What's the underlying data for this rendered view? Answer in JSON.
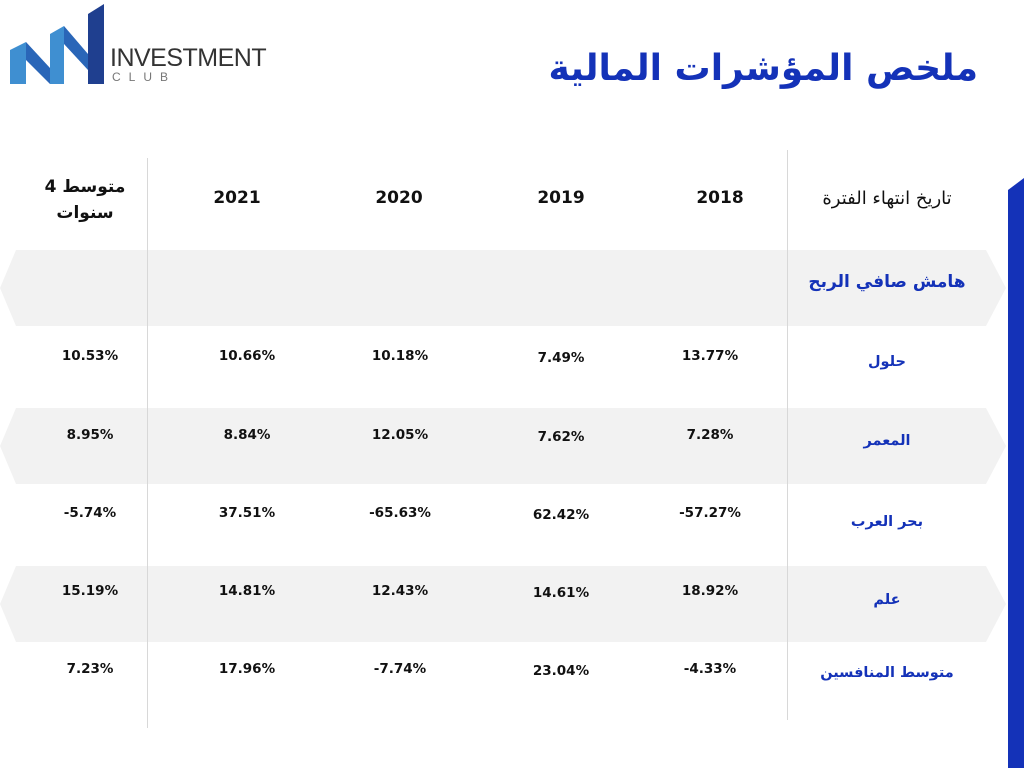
{
  "logo": {
    "word": "INVESTMENT",
    "sub": "CLUB"
  },
  "title": "ملخص المؤشرات المالية",
  "colors": {
    "accent": "#1432b8",
    "band": "#f2f2f2",
    "logo_blue_dark": "#1f3f8f",
    "logo_blue_light": "#3f8fd1"
  },
  "table": {
    "period_header": "تاريخ انتهاء الفترة",
    "years": [
      "2018",
      "2019",
      "2020",
      "2021"
    ],
    "avg_header_line1": "متوسط 4",
    "avg_header_line2": "سنوات",
    "section": "هامش صافي الربح",
    "rows": [
      {
        "label": "حلول",
        "values": [
          "13.77%",
          "7.49%",
          "10.18%",
          "10.66%"
        ],
        "avg": "10.53%"
      },
      {
        "label": "المعمر",
        "values": [
          "7.28%",
          "7.62%",
          "12.05%",
          "8.84%"
        ],
        "avg": "8.95%"
      },
      {
        "label": "بحر العرب",
        "values": [
          "-57.27%",
          "62.42%",
          "-65.63%",
          "37.51%"
        ],
        "avg": "-5.74%"
      },
      {
        "label": "علم",
        "values": [
          "18.92%",
          "14.61%",
          "12.43%",
          "14.81%"
        ],
        "avg": "15.19%"
      },
      {
        "label": "متوسط المنافسين",
        "values": [
          "-4.33%",
          "23.04%",
          "-7.74%",
          "17.96%"
        ],
        "avg": "7.23%"
      }
    ]
  }
}
